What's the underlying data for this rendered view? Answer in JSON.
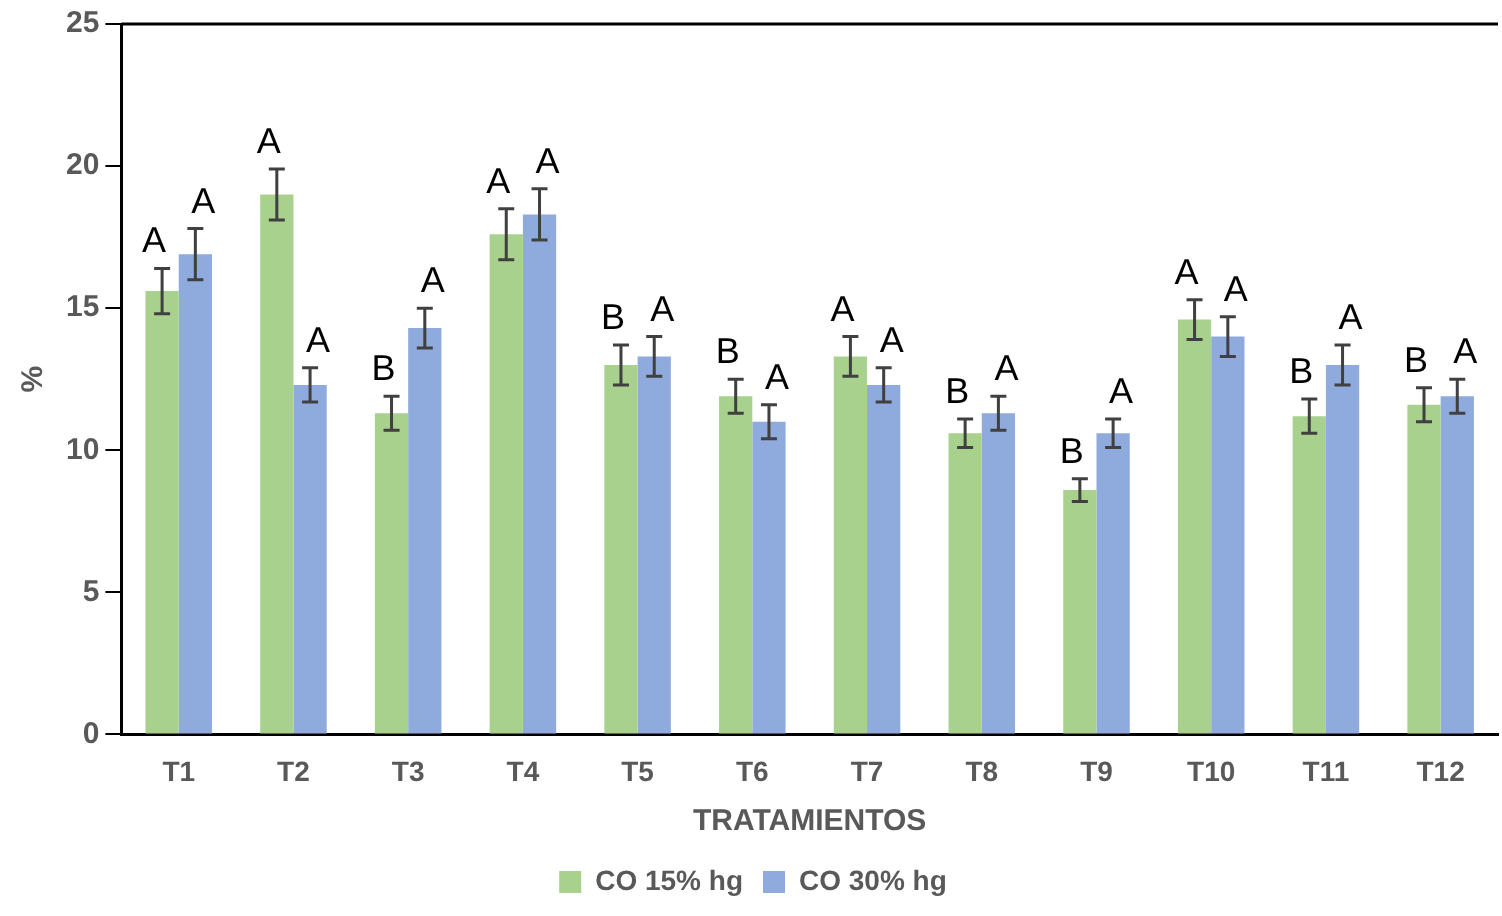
{
  "chart_data": {
    "type": "bar",
    "categories": [
      "T1",
      "T2",
      "T3",
      "T4",
      "T5",
      "T6",
      "T7",
      "T8",
      "T9",
      "T10",
      "T11",
      "T12"
    ],
    "series": [
      {
        "name": "CO 15% hg",
        "color": "#a9d18e",
        "values": [
          15.6,
          19.0,
          11.3,
          17.6,
          13.0,
          11.9,
          13.3,
          10.6,
          8.6,
          14.6,
          11.2,
          11.6
        ],
        "errors": [
          0.8,
          0.9,
          0.6,
          0.9,
          0.7,
          0.6,
          0.7,
          0.5,
          0.4,
          0.7,
          0.6,
          0.6
        ],
        "value_labels": [
          "A",
          "A",
          "B",
          "A",
          "B",
          "B",
          "A",
          "B",
          "B",
          "A",
          "B",
          "B"
        ]
      },
      {
        "name": "CO 30% hg",
        "color": "#8faadc",
        "values": [
          16.9,
          12.3,
          14.3,
          18.3,
          13.3,
          11.0,
          12.3,
          11.3,
          10.6,
          14.0,
          13.0,
          11.9
        ],
        "errors": [
          0.9,
          0.6,
          0.7,
          0.9,
          0.7,
          0.6,
          0.6,
          0.6,
          0.5,
          0.7,
          0.7,
          0.6
        ],
        "value_labels": [
          "A",
          "A",
          "A",
          "A",
          "A",
          "A",
          "A",
          "A",
          "A",
          "A",
          "A",
          "A"
        ]
      }
    ],
    "xlabel": "TRATAMIENTOS",
    "ylabel": "%",
    "ylim": [
      0,
      25
    ],
    "yticks": [
      0,
      5,
      10,
      15,
      20,
      25
    ],
    "grid": false,
    "legend": "bottom"
  }
}
